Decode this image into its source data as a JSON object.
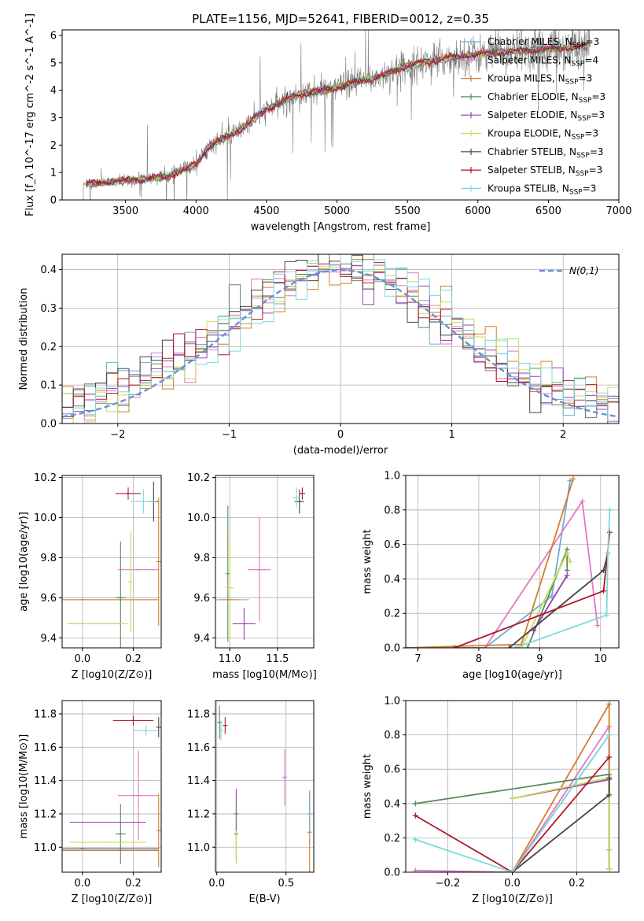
{
  "figure_title": "PLATE=1156, MJD=52641, FIBERID=0012, z=0.35",
  "colors": {
    "Chabrier MILES": "#6baed6",
    "Salpeter MILES": "#e377c2",
    "Kroupa MILES": "#d07f2e",
    "Chabrier ELODIE": "#5b8a5b",
    "Salpeter ELODIE": "#9a3db3",
    "Kroupa ELODIE": "#c8dc5a",
    "Chabrier STELIB": "#444444",
    "Salpeter STELIB": "#b2182b",
    "Kroupa STELIB": "#7fd8dc",
    "data": "#7f7f7f",
    "normal": "#6a8fd6",
    "grid": "#b0b0b0"
  },
  "legend_entries": [
    {
      "model": "Chabrier MILES",
      "nssp": "3"
    },
    {
      "model": "Salpeter MILES",
      "nssp": "4"
    },
    {
      "model": "Kroupa MILES",
      "nssp": "3"
    },
    {
      "model": "Chabrier ELODIE",
      "nssp": "3"
    },
    {
      "model": "Salpeter ELODIE",
      "nssp": "3"
    },
    {
      "model": "Kroupa ELODIE",
      "nssp": "3"
    },
    {
      "model": "Chabrier STELIB",
      "nssp": "3"
    },
    {
      "model": "Salpeter STELIB",
      "nssp": "3"
    },
    {
      "model": "Kroupa STELIB",
      "nssp": "3"
    }
  ],
  "chart_data": [
    {
      "id": "spectrum",
      "type": "line",
      "xlabel": "wavelength [Angstrom, rest frame]",
      "ylabel": "Flux [f_λ 10^-17 erg cm^-2 s^-1 A^-1]",
      "xlim": [
        3050,
        7000
      ],
      "ylim": [
        0,
        6.2
      ],
      "xticks": [
        3500,
        4000,
        4500,
        5000,
        5500,
        6000,
        6500,
        7000
      ],
      "yticks": [
        0,
        1,
        2,
        3,
        4,
        5,
        6
      ],
      "continuum": {
        "x": [
          3200,
          3250,
          3500,
          3800,
          4000,
          4100,
          4300,
          4500,
          4700,
          5000,
          5300,
          5500,
          5800,
          6200,
          6800
        ],
        "y": [
          0.55,
          0.6,
          0.7,
          0.85,
          1.3,
          2.0,
          2.5,
          3.3,
          3.8,
          4.1,
          4.5,
          4.9,
          5.2,
          5.4,
          5.6
        ]
      },
      "data_range": [
        3200,
        6800
      ],
      "grid": false,
      "legend": "top-right"
    },
    {
      "id": "residuals",
      "type": "step",
      "xlabel": "(data-model)/error",
      "ylabel": "Normed distribution",
      "xlim": [
        -2.5,
        2.5
      ],
      "ylim": [
        0,
        0.44
      ],
      "xticks": [
        -2,
        -1,
        0,
        1,
        2
      ],
      "yticks": [
        0.0,
        0.1,
        0.2,
        0.3,
        0.4
      ],
      "normal_label": "N(0,1)",
      "bin_width": 0.1,
      "grid": true,
      "legend": "top-right"
    },
    {
      "id": "Z-age",
      "type": "errorbar",
      "xlabel": "Z [log10(Z/Z⊙)]",
      "ylabel": "age [log10(age/yr)]",
      "xlim": [
        -0.08,
        0.31
      ],
      "ylim": [
        9.35,
        10.21
      ],
      "xticks": [
        0.0,
        0.2
      ],
      "yticks": [
        9.4,
        9.6,
        9.8,
        10.0,
        10.2
      ],
      "points": [
        {
          "model": "Chabrier MILES",
          "x": 0.0,
          "y": 9.59,
          "xerr": 0.3,
          "yerr": 0.0
        },
        {
          "model": "Salpeter MILES",
          "x": 0.22,
          "y": 9.74,
          "xerr": 0.08,
          "yerr": 0.0
        },
        {
          "model": "Kroupa MILES",
          "x": 0.0,
          "y": 9.59,
          "xerr": 0.3,
          "yerr": 0.0
        },
        {
          "model": "Chabrier ELODIE",
          "x": 0.15,
          "y": 9.6,
          "xerr": 0.02,
          "yerr": 0.28
        },
        {
          "model": "Salpeter ELODIE",
          "x": 0.05,
          "y": 9.47,
          "xerr": 0.1,
          "yerr": 0.0
        },
        {
          "model": "Kroupa ELODIE",
          "x": 0.06,
          "y": 9.47,
          "xerr": 0.12,
          "yerr": 0.0
        },
        {
          "model": "Chabrier STELIB",
          "x": 0.28,
          "y": 10.08,
          "xerr": 0.02,
          "yerr": 0.1
        },
        {
          "model": "Salpeter STELIB",
          "x": 0.18,
          "y": 10.12,
          "xerr": 0.05,
          "yerr": 0.03
        },
        {
          "model": "Kroupa STELIB",
          "x": 0.24,
          "y": 10.08,
          "xerr": 0.05,
          "yerr": 0.06
        },
        {
          "model": "Kroupa MILES",
          "x": 0.3,
          "y": 9.78,
          "xerr": 0.0,
          "yerr": 0.32
        },
        {
          "model": "Kroupa ELODIE",
          "x": 0.19,
          "y": 9.68,
          "xerr": 0.0,
          "yerr": 0.25
        }
      ],
      "grid": true
    },
    {
      "id": "mass-age",
      "type": "errorbar",
      "xlabel": "mass [log10(M/M⊙)]",
      "ylabel": "",
      "xlim": [
        10.85,
        11.88
      ],
      "ylim": [
        9.35,
        10.21
      ],
      "xticks": [
        11.0,
        11.5
      ],
      "yticks": [
        9.4,
        9.6,
        9.8,
        10.0,
        10.2
      ],
      "points": [
        {
          "model": "Chabrier MILES",
          "x": 11.0,
          "y": 9.59,
          "xerr": 0.2,
          "yerr": 0.0
        },
        {
          "model": "Kroupa MILES",
          "x": 10.99,
          "y": 9.59,
          "xerr": 0.1,
          "yerr": 0.0
        },
        {
          "model": "Salpeter MILES",
          "x": 11.31,
          "y": 9.74,
          "xerr": 0.12,
          "yerr": 0.26
        },
        {
          "model": "Chabrier ELODIE",
          "x": 10.98,
          "y": 9.72,
          "xerr": 0.0,
          "yerr": 0.34
        },
        {
          "model": "Salpeter ELODIE",
          "x": 11.15,
          "y": 9.47,
          "xerr": 0.12,
          "yerr": 0.08
        },
        {
          "model": "Kroupa ELODIE",
          "x": 11.0,
          "y": 9.65,
          "xerr": 0.04,
          "yerr": 0.28
        },
        {
          "model": "Chabrier STELIB",
          "x": 11.73,
          "y": 10.08,
          "xerr": 0.05,
          "yerr": 0.06
        },
        {
          "model": "Salpeter STELIB",
          "x": 11.76,
          "y": 10.12,
          "xerr": 0.03,
          "yerr": 0.03
        },
        {
          "model": "Kroupa STELIB",
          "x": 11.7,
          "y": 10.1,
          "xerr": 0.04,
          "yerr": 0.05
        }
      ],
      "grid": true
    },
    {
      "id": "age-weight",
      "type": "line",
      "xlabel": "age [log10(age/yr)]",
      "ylabel": "mass weight",
      "xlim": [
        6.8,
        10.3
      ],
      "ylim": [
        0,
        1.0
      ],
      "xticks": [
        7,
        8,
        9,
        10
      ],
      "yticks": [
        0.0,
        0.2,
        0.4,
        0.6,
        0.8,
        1.0
      ],
      "series": [
        {
          "model": "Chabrier MILES",
          "x": [
            6.8,
            8.1,
            9.2,
            9.5
          ],
          "y": [
            0.0,
            0.0,
            0.3,
            0.97
          ]
        },
        {
          "model": "Salpeter MILES",
          "x": [
            6.8,
            8.1,
            9.7,
            9.95
          ],
          "y": [
            0.0,
            0.0,
            0.85,
            0.13
          ]
        },
        {
          "model": "Kroupa MILES",
          "x": [
            6.8,
            8.7,
            9.55
          ],
          "y": [
            0.0,
            0.02,
            0.98
          ]
        },
        {
          "model": "Chabrier ELODIE",
          "x": [
            8.8,
            9.45,
            9.45
          ],
          "y": [
            0.0,
            0.57,
            0.45
          ]
        },
        {
          "model": "Salpeter ELODIE",
          "x": [
            8.9,
            9.45
          ],
          "y": [
            0.1,
            0.42
          ]
        },
        {
          "model": "Kroupa ELODIE",
          "x": [
            8.7,
            9.45,
            9.5
          ],
          "y": [
            0.0,
            0.55,
            0.5
          ]
        },
        {
          "model": "Chabrier STELIB",
          "x": [
            8.5,
            10.05,
            10.12
          ],
          "y": [
            0.0,
            0.45,
            0.55
          ]
        },
        {
          "model": "Salpeter STELIB",
          "x": [
            7.6,
            10.05,
            10.15
          ],
          "y": [
            0.0,
            0.33,
            0.67
          ]
        },
        {
          "model": "Kroupa STELIB",
          "x": [
            8.6,
            10.1,
            10.12,
            10.15
          ],
          "y": [
            0.0,
            0.19,
            0.55,
            0.8
          ]
        }
      ],
      "grid": true
    },
    {
      "id": "Z-mass",
      "type": "errorbar",
      "xlabel": "Z [log10(Z/Z⊙)]",
      "ylabel": "mass [log10(M/M⊙)]",
      "xlim": [
        -0.08,
        0.31
      ],
      "ylim": [
        10.85,
        11.88
      ],
      "xticks": [
        0.0,
        0.2
      ],
      "yticks": [
        11.0,
        11.2,
        11.4,
        11.6,
        11.8
      ],
      "points": [
        {
          "model": "Chabrier MILES",
          "x": 0.0,
          "y": 10.99,
          "xerr": 0.3,
          "yerr": 0.0
        },
        {
          "model": "Kroupa MILES",
          "x": 0.02,
          "y": 10.98,
          "xerr": 0.28,
          "yerr": 0.0
        },
        {
          "model": "Salpeter MILES",
          "x": 0.22,
          "y": 11.31,
          "xerr": 0.08,
          "yerr": 0.27
        },
        {
          "model": "Chabrier ELODIE",
          "x": 0.15,
          "y": 11.08,
          "xerr": 0.02,
          "yerr": 0.18
        },
        {
          "model": "Salpeter ELODIE",
          "x": 0.1,
          "y": 11.15,
          "xerr": 0.15,
          "yerr": 0.0
        },
        {
          "model": "Kroupa ELODIE",
          "x": 0.1,
          "y": 11.03,
          "xerr": 0.15,
          "yerr": 0.0
        },
        {
          "model": "Chabrier STELIB",
          "x": 0.0,
          "y": 10.99,
          "xerr": 0.3,
          "yerr": 0.0
        },
        {
          "model": "Salpeter STELIB",
          "x": 0.2,
          "y": 11.76,
          "xerr": 0.08,
          "yerr": 0.03
        },
        {
          "model": "Kroupa STELIB",
          "x": 0.25,
          "y": 11.7,
          "xerr": 0.05,
          "yerr": 0.03
        },
        {
          "model": "Kroupa MILES",
          "x": 0.3,
          "y": 11.1,
          "xerr": 0.0,
          "yerr": 0.22
        },
        {
          "model": "Chabrier STELIB",
          "x": 0.3,
          "y": 11.72,
          "xerr": 0.0,
          "yerr": 0.06
        }
      ],
      "grid": true
    },
    {
      "id": "EBV-mass",
      "type": "errorbar",
      "xlabel": "E(B-V)",
      "ylabel": "",
      "xlim": [
        -0.01,
        0.7
      ],
      "ylim": [
        10.85,
        11.88
      ],
      "xticks": [
        0.0,
        0.5
      ],
      "yticks": [
        11.0,
        11.2,
        11.4,
        11.6,
        11.8
      ],
      "points": [
        {
          "model": "Chabrier ELODIE",
          "x": 0.02,
          "y": 11.75,
          "xerr": 0.0,
          "yerr": 0.1
        },
        {
          "model": "Kroupa STELIB",
          "x": 0.03,
          "y": 11.7,
          "xerr": 0.0,
          "yerr": 0.06
        },
        {
          "model": "Salpeter STELIB",
          "x": 0.06,
          "y": 11.73,
          "xerr": 0.0,
          "yerr": 0.05
        },
        {
          "model": "Salpeter ELODIE",
          "x": 0.14,
          "y": 11.2,
          "xerr": 0.0,
          "yerr": 0.15
        },
        {
          "model": "Chabrier ELODIE",
          "x": 0.14,
          "y": 11.08,
          "xerr": 0.0,
          "yerr": 0.17
        },
        {
          "model": "Kroupa ELODIE",
          "x": 0.14,
          "y": 11.0,
          "xerr": 0.0,
          "yerr": 0.1
        },
        {
          "model": "Salpeter MILES",
          "x": 0.49,
          "y": 11.42,
          "xerr": 0.0,
          "yerr": 0.17
        },
        {
          "model": "Kroupa MILES",
          "x": 0.67,
          "y": 11.09,
          "xerr": 0.0,
          "yerr": 0.25
        },
        {
          "model": "Chabrier MILES",
          "x": 0.67,
          "y": 11.2,
          "xerr": 0.0,
          "yerr": 0.13
        }
      ],
      "grid": true
    },
    {
      "id": "Z-weight",
      "type": "line",
      "xlabel": "Z [log10(Z/Z⊙)]",
      "ylabel": "mass weight",
      "xlim": [
        -0.33,
        0.33
      ],
      "ylim": [
        0,
        1.0
      ],
      "xticks": [
        -0.2,
        0.0,
        0.2
      ],
      "yticks": [
        0.0,
        0.2,
        0.4,
        0.6,
        0.8,
        1.0
      ],
      "series": [
        {
          "model": "Chabrier MILES",
          "x": [
            0.0,
            0.3,
            0.3
          ],
          "y": [
            0.0,
            0.8,
            0.02
          ]
        },
        {
          "model": "Salpeter MILES",
          "x": [
            -0.3,
            0.0,
            0.3,
            0.3
          ],
          "y": [
            0.01,
            0.0,
            0.85,
            0.13
          ]
        },
        {
          "model": "Kroupa MILES",
          "x": [
            0.0,
            0.3,
            0.3
          ],
          "y": [
            0.0,
            0.98,
            0.02
          ]
        },
        {
          "model": "Chabrier ELODIE",
          "x": [
            -0.3,
            0.3,
            0.3
          ],
          "y": [
            0.4,
            0.57,
            0.02
          ]
        },
        {
          "model": "Salpeter ELODIE",
          "x": [
            0.0,
            0.3
          ],
          "y": [
            0.43,
            0.54
          ]
        },
        {
          "model": "Kroupa ELODIE",
          "x": [
            0.0,
            0.3,
            0.3
          ],
          "y": [
            0.43,
            0.55,
            0.02
          ]
        },
        {
          "model": "Chabrier STELIB",
          "x": [
            0.0,
            0.3,
            0.3
          ],
          "y": [
            0.0,
            0.45,
            0.55
          ]
        },
        {
          "model": "Salpeter STELIB",
          "x": [
            -0.3,
            0.0,
            0.3
          ],
          "y": [
            0.33,
            0.0,
            0.67
          ]
        },
        {
          "model": "Kroupa STELIB",
          "x": [
            -0.3,
            0.0,
            0.3
          ],
          "y": [
            0.19,
            0.0,
            0.8
          ]
        }
      ],
      "grid": true
    }
  ]
}
